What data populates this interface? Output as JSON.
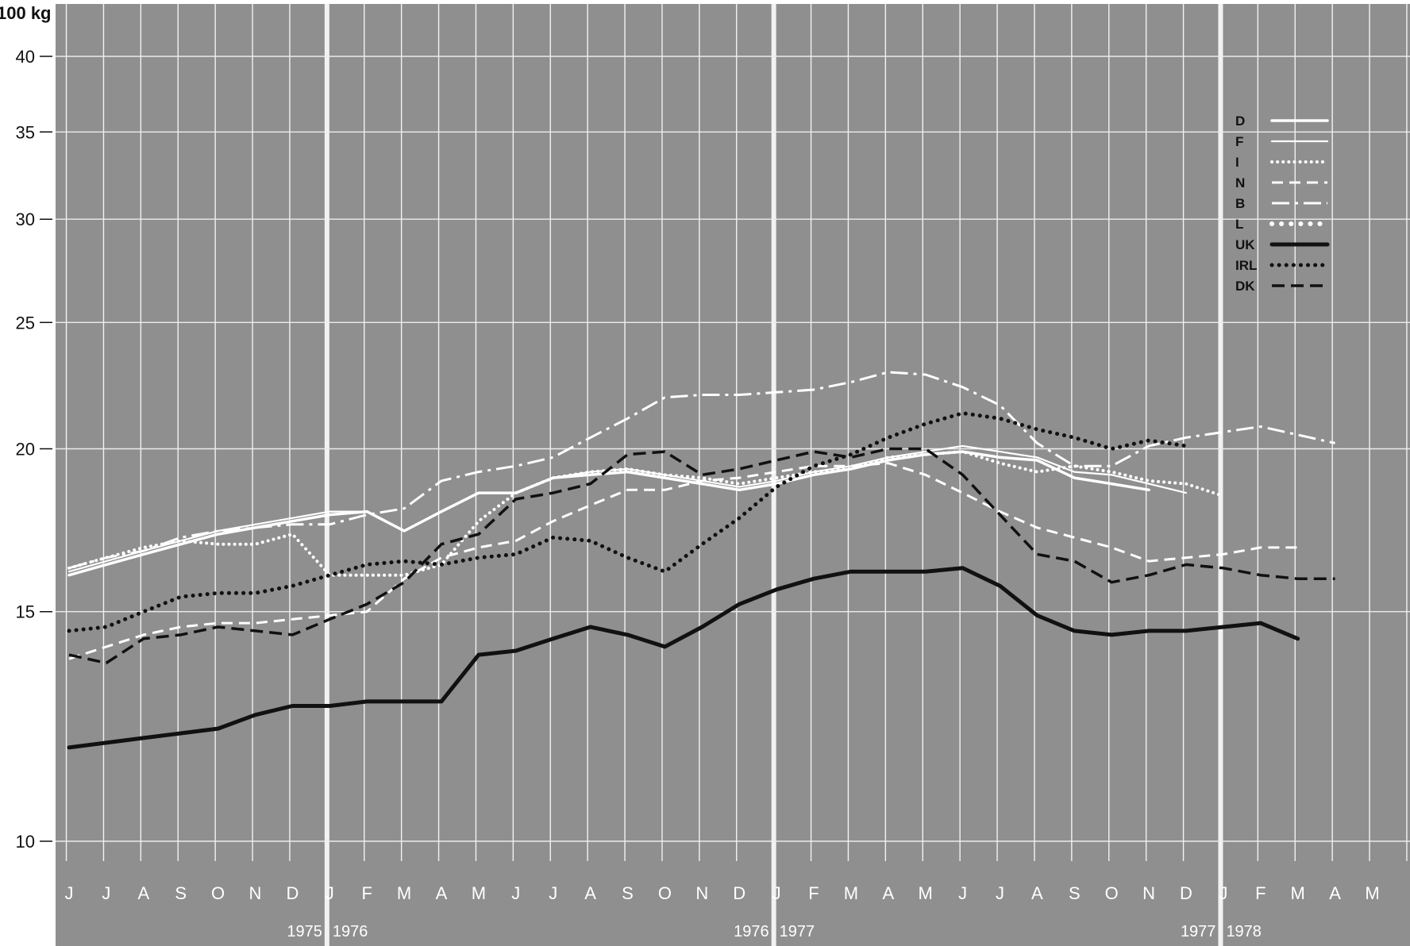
{
  "chart_data": {
    "type": "line",
    "title": "",
    "ylabel": "100 kg",
    "xlabel": "",
    "y_scale": "log",
    "ylim": [
      9,
      43
    ],
    "y_ticks": [
      10,
      15,
      20,
      25,
      30,
      35,
      40
    ],
    "grid": true,
    "legend_position": "top-right",
    "month_labels": [
      "J",
      "J",
      "A",
      "S",
      "O",
      "N",
      "D",
      "J",
      "F",
      "M",
      "A",
      "M",
      "J",
      "J",
      "A",
      "S",
      "O",
      "N",
      "D",
      "J",
      "F",
      "M",
      "A",
      "M",
      "J",
      "J",
      "A",
      "S",
      "O",
      "N",
      "D",
      "J",
      "F",
      "M",
      "A",
      "M"
    ],
    "x": [
      "1975-06",
      "1975-07",
      "1975-08",
      "1975-09",
      "1975-10",
      "1975-11",
      "1975-12",
      "1976-01",
      "1976-02",
      "1976-03",
      "1976-04",
      "1976-05",
      "1976-06",
      "1976-07",
      "1976-08",
      "1976-09",
      "1976-10",
      "1976-11",
      "1976-12",
      "1977-01",
      "1977-02",
      "1977-03",
      "1977-04",
      "1977-05",
      "1977-06",
      "1977-07",
      "1977-08",
      "1977-09",
      "1977-10",
      "1977-11",
      "1977-12",
      "1978-01",
      "1978-02",
      "1978-03",
      "1978-04",
      "1978-05"
    ],
    "year_labels": [
      {
        "text": "1975",
        "side": "left",
        "boundary": 7
      },
      {
        "text": "1976",
        "side": "right",
        "boundary": 7
      },
      {
        "text": "1976",
        "side": "left",
        "boundary": 19
      },
      {
        "text": "1977",
        "side": "right",
        "boundary": 19
      },
      {
        "text": "1977",
        "side": "left",
        "boundary": 31
      },
      {
        "text": "1978",
        "side": "right",
        "boundary": 31
      }
    ],
    "series": [
      {
        "name": "D",
        "color": "#ffffff",
        "style": "solid-thick",
        "values": [
          16.0,
          16.3,
          16.6,
          16.9,
          17.2,
          17.4,
          17.6,
          17.8,
          17.9,
          17.3,
          17.9,
          18.5,
          18.5,
          19.0,
          19.1,
          19.2,
          19.0,
          18.8,
          18.6,
          18.8,
          19.1,
          19.3,
          19.6,
          19.8,
          19.9,
          19.7,
          19.6,
          19.0,
          18.8,
          18.6,
          null,
          null,
          null,
          null,
          null,
          null
        ]
      },
      {
        "name": "F",
        "color": "#ffffff",
        "style": "solid-thin",
        "values": [
          16.1,
          16.4,
          16.7,
          17.0,
          17.3,
          17.5,
          17.7,
          17.9,
          17.9,
          17.3,
          17.9,
          18.5,
          18.5,
          19.0,
          19.2,
          19.3,
          19.1,
          18.9,
          18.7,
          18.9,
          19.2,
          19.4,
          19.7,
          19.9,
          20.1,
          19.9,
          19.7,
          19.2,
          19.1,
          18.8,
          18.5,
          null,
          null,
          null,
          null,
          null
        ]
      },
      {
        "name": "I",
        "color": "#ffffff",
        "style": "dotted",
        "values": [
          16.2,
          16.5,
          16.8,
          17.0,
          16.9,
          16.9,
          17.2,
          16.0,
          16.0,
          16.0,
          16.3,
          17.6,
          18.5,
          19.0,
          19.2,
          19.3,
          19.1,
          19.0,
          18.8,
          19.0,
          19.2,
          19.3,
          19.7,
          19.8,
          19.9,
          19.5,
          19.2,
          19.4,
          19.2,
          18.9,
          18.8,
          18.4,
          null,
          null,
          null,
          null
        ]
      },
      {
        "name": "N",
        "color": "#ffffff",
        "style": "dashed",
        "values": [
          13.8,
          14.1,
          14.4,
          14.6,
          14.7,
          14.7,
          14.8,
          14.9,
          15.0,
          15.9,
          16.5,
          16.8,
          17.0,
          17.6,
          18.1,
          18.6,
          18.6,
          18.9,
          19.0,
          19.2,
          19.4,
          19.4,
          19.5,
          19.1,
          18.5,
          17.9,
          17.4,
          17.1,
          16.8,
          16.4,
          16.5,
          16.6,
          16.8,
          16.8,
          null,
          null
        ]
      },
      {
        "name": "B",
        "color": "#ffffff",
        "style": "dash-dot",
        "values": [
          16.2,
          16.5,
          16.7,
          17.1,
          17.3,
          17.4,
          17.5,
          17.5,
          17.8,
          18.0,
          18.9,
          19.2,
          19.4,
          19.7,
          20.4,
          21.1,
          21.9,
          22.0,
          22.0,
          22.1,
          22.2,
          22.5,
          22.9,
          22.8,
          22.3,
          21.6,
          20.2,
          19.4,
          19.4,
          20.1,
          20.4,
          20.6,
          20.8,
          20.5,
          20.2,
          null
        ]
      },
      {
        "name": "L",
        "color": "#ffffff",
        "style": "dots-large",
        "values": [
          null,
          null,
          null,
          null,
          null,
          null,
          null,
          null,
          null,
          null,
          null,
          null,
          null,
          null,
          null,
          null,
          null,
          null,
          null,
          null,
          null,
          null,
          null,
          null,
          null,
          null,
          null,
          null,
          null,
          null,
          null,
          null,
          null,
          null,
          null,
          null
        ]
      },
      {
        "name": "UK",
        "color": "#111111",
        "style": "solid-black",
        "values": [
          11.8,
          11.9,
          12.0,
          12.1,
          12.2,
          12.5,
          12.7,
          12.7,
          12.8,
          12.8,
          12.8,
          13.9,
          14.0,
          14.3,
          14.6,
          14.4,
          14.1,
          14.6,
          15.2,
          15.6,
          15.9,
          16.1,
          16.1,
          16.1,
          16.2,
          15.7,
          14.9,
          14.5,
          14.4,
          14.5,
          14.5,
          14.6,
          14.7,
          14.3,
          null,
          null
        ]
      },
      {
        "name": "IRL",
        "color": "#111111",
        "style": "dotted-black",
        "values": [
          14.5,
          14.6,
          15.0,
          15.4,
          15.5,
          15.5,
          15.7,
          16.0,
          16.3,
          16.4,
          16.3,
          16.5,
          16.6,
          17.1,
          17.0,
          16.5,
          16.1,
          16.9,
          17.7,
          18.7,
          19.4,
          19.8,
          20.4,
          20.9,
          21.3,
          21.1,
          20.7,
          20.4,
          20.0,
          20.3,
          20.1,
          null,
          null,
          null,
          null,
          null
        ]
      },
      {
        "name": "DK",
        "color": "#111111",
        "style": "dashed-black",
        "values": [
          13.9,
          13.7,
          14.3,
          14.4,
          14.6,
          14.5,
          14.4,
          14.8,
          15.2,
          15.8,
          16.9,
          17.2,
          18.3,
          18.5,
          18.8,
          19.8,
          19.9,
          19.1,
          19.3,
          19.6,
          19.9,
          19.7,
          20.0,
          20.0,
          19.1,
          17.8,
          16.6,
          16.4,
          15.8,
          16.0,
          16.3,
          16.2,
          16.0,
          15.9,
          15.9,
          null
        ]
      }
    ]
  }
}
